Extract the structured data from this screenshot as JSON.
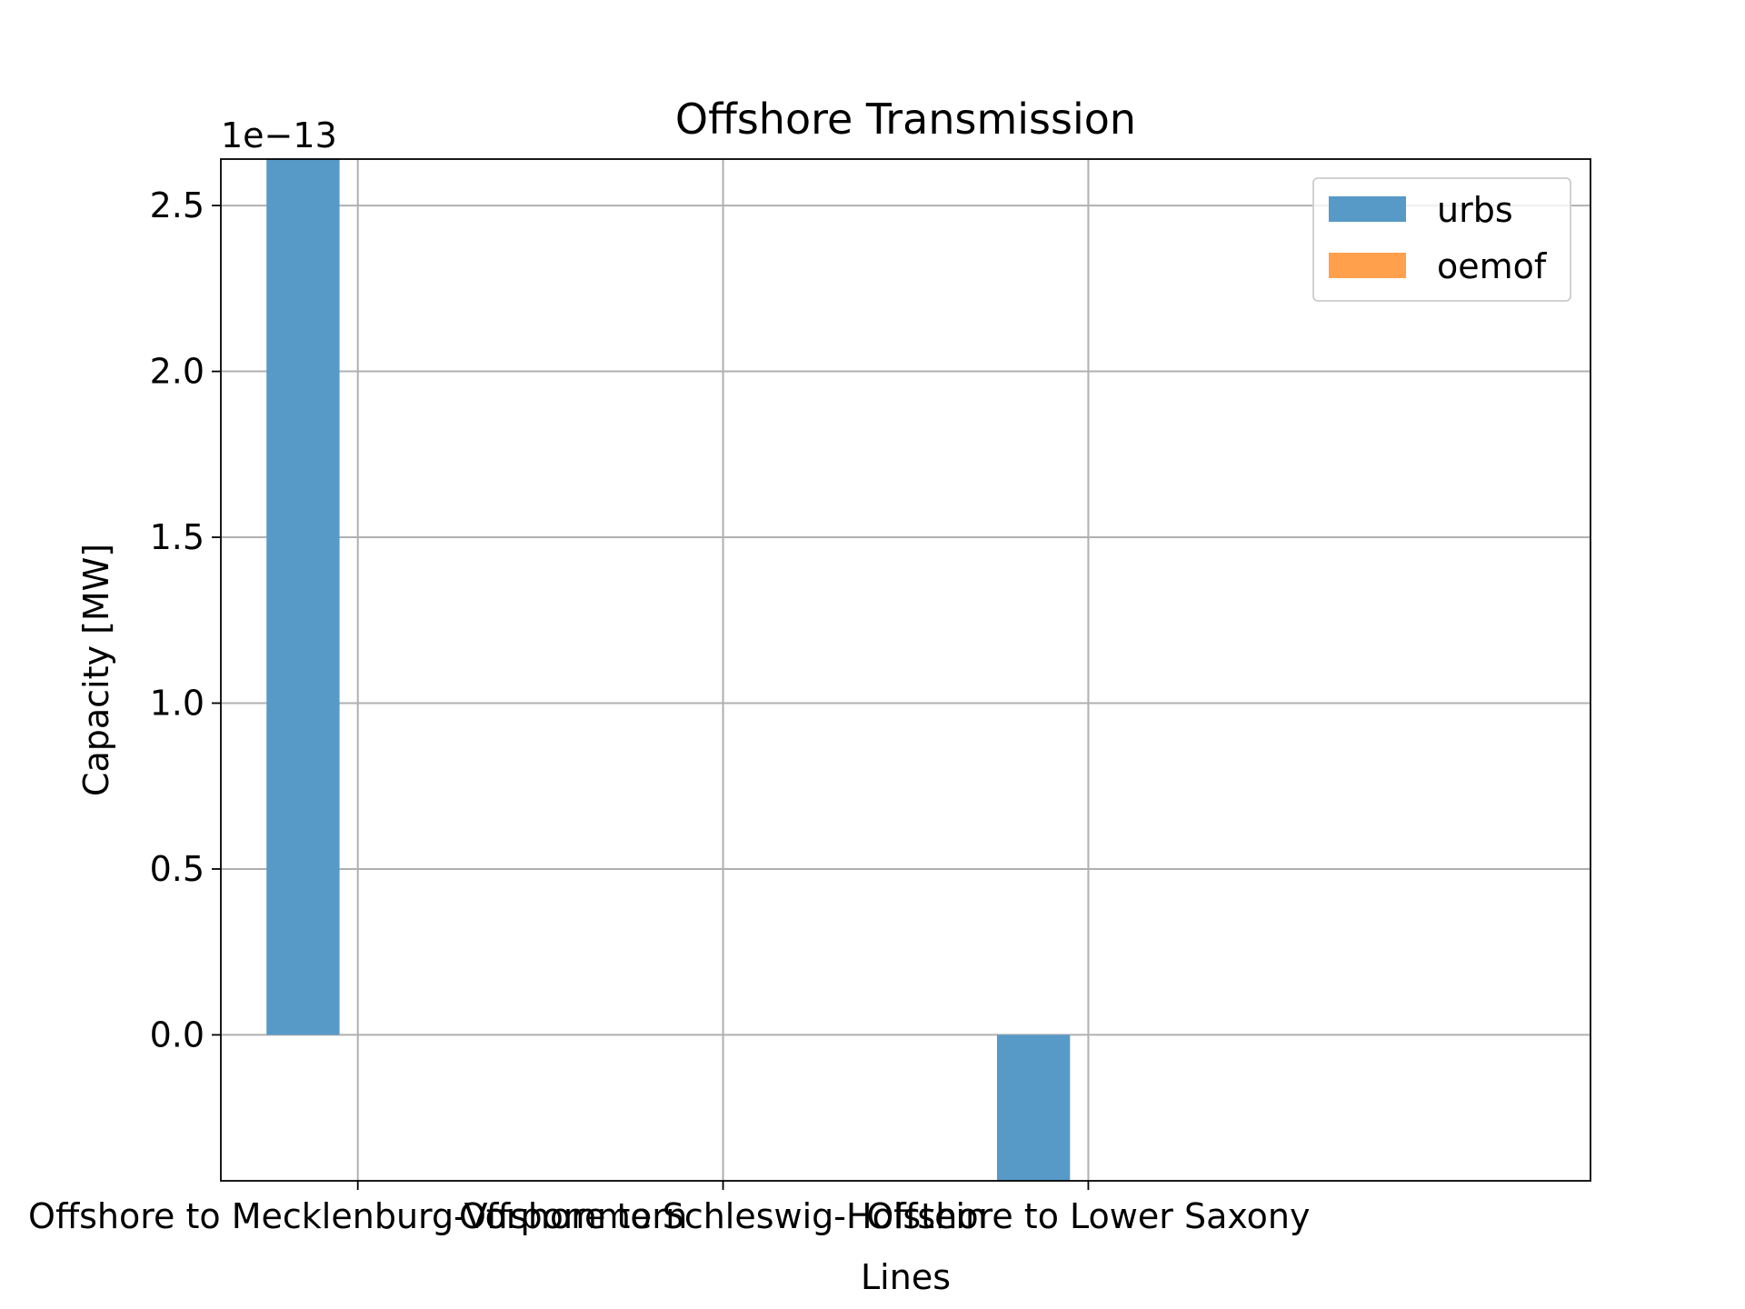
{
  "chart_data": {
    "type": "bar",
    "title": "Offshore Transmission",
    "xlabel": "Lines",
    "ylabel": "Capacity [MW]",
    "offset_text": "1e−13",
    "categories": [
      "Offshore to Mecklenburg-Vorpommern",
      "Offshore to Schleswig-Holstein",
      "Offshore to Lower Saxony"
    ],
    "series": [
      {
        "name": "urbs",
        "color": "#5799c7",
        "values": [
          2.64e-13,
          0,
          -4.4e-14
        ]
      },
      {
        "name": "oemof",
        "color": "#ffa04d",
        "values": [
          0,
          0,
          0
        ]
      }
    ],
    "ylim": [
      -4.4e-14,
      2.64e-13
    ],
    "yticks": [
      0.0,
      0.5,
      1.0,
      1.5,
      2.0,
      2.5
    ],
    "ytick_labels": [
      "0.0",
      "0.5",
      "1.0",
      "1.5",
      "2.0",
      "2.5"
    ],
    "ytick_scale": 1e-13,
    "grid": true,
    "legend_position": "top-right"
  }
}
